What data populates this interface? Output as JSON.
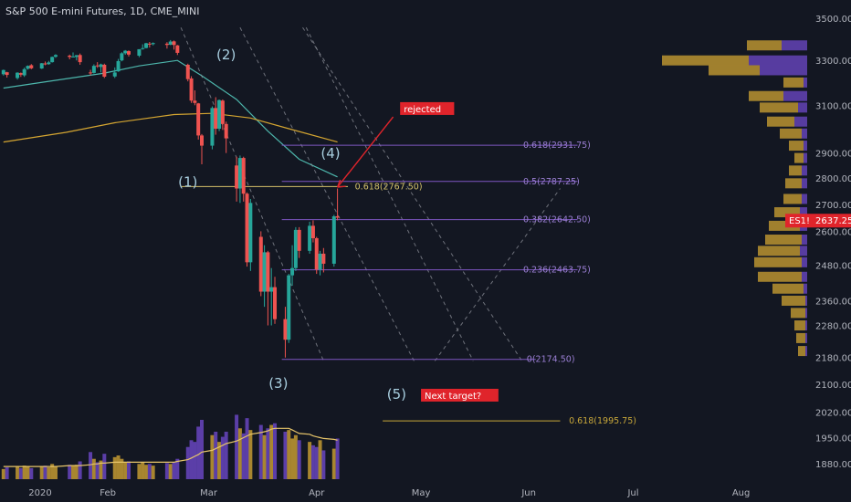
{
  "header": {
    "title": "S&P 500 E-mini Futures, 1D, CME_MINI"
  },
  "colors": {
    "background": "#131722",
    "up": "#26a69a",
    "down": "#ef5350",
    "text": "#b2b5be",
    "fib": "#7e57c2",
    "ma_short": "#4db6ac",
    "ma_long": "#d4a531",
    "vol_gold": "#a8862f",
    "vol_purple": "#5b3ea8",
    "price_tag": "#e0242b",
    "annotation_red": "#e0242b"
  },
  "chart_data": {
    "type": "candlestick",
    "symbol_tag": "ES1!",
    "last_price": "2637.25",
    "y_axis": {
      "ticks": [
        "3500.00",
        "3300.00",
        "3100.00",
        "2900.00",
        "2800.00",
        "2700.00",
        "2600.00",
        "2480.00",
        "2360.00",
        "2280.00",
        "2180.00",
        "2100.00",
        "2020.00",
        "1950.00",
        "1880.00"
      ],
      "scale": "log",
      "range": [
        1830,
        3580
      ]
    },
    "x_axis": {
      "ticks": [
        "2020",
        "Feb",
        "Mar",
        "Apr",
        "May",
        "Jun",
        "Jul",
        "Aug"
      ],
      "range": [
        "2020-01-01",
        "2020-08-20"
      ]
    },
    "candles": [
      {
        "d": "2020-01-02",
        "o": 3237,
        "h": 3258,
        "l": 3231,
        "c": 3256
      },
      {
        "d": "2020-01-03",
        "o": 3246,
        "h": 3248,
        "l": 3222,
        "c": 3234
      },
      {
        "d": "2020-01-06",
        "o": 3220,
        "h": 3246,
        "l": 3213,
        "c": 3244
      },
      {
        "d": "2020-01-07",
        "o": 3242,
        "h": 3245,
        "l": 3225,
        "c": 3235
      },
      {
        "d": "2020-01-08",
        "o": 3232,
        "h": 3267,
        "l": 3225,
        "c": 3260
      },
      {
        "d": "2020-01-09",
        "o": 3262,
        "h": 3277,
        "l": 3258,
        "c": 3275
      },
      {
        "d": "2020-01-10",
        "o": 3278,
        "h": 3283,
        "l": 3260,
        "c": 3264
      },
      {
        "d": "2020-01-13",
        "o": 3263,
        "h": 3288,
        "l": 3261,
        "c": 3287
      },
      {
        "d": "2020-01-14",
        "o": 3286,
        "h": 3295,
        "l": 3278,
        "c": 3282
      },
      {
        "d": "2020-01-15",
        "o": 3283,
        "h": 3298,
        "l": 3280,
        "c": 3291
      },
      {
        "d": "2020-01-16",
        "o": 3292,
        "h": 3318,
        "l": 3290,
        "c": 3316
      },
      {
        "d": "2020-01-17",
        "o": 3317,
        "h": 3329,
        "l": 3312,
        "c": 3325
      },
      {
        "d": "2020-01-21",
        "o": 3322,
        "h": 3327,
        "l": 3305,
        "c": 3316
      },
      {
        "d": "2020-01-22",
        "o": 3317,
        "h": 3337,
        "l": 3314,
        "c": 3318
      },
      {
        "d": "2020-01-23",
        "o": 3316,
        "h": 3325,
        "l": 3300,
        "c": 3324
      },
      {
        "d": "2020-01-24",
        "o": 3325,
        "h": 3332,
        "l": 3280,
        "c": 3292
      },
      {
        "d": "2020-01-27",
        "o": 3245,
        "h": 3257,
        "l": 3232,
        "c": 3241
      },
      {
        "d": "2020-01-28",
        "o": 3243,
        "h": 3282,
        "l": 3240,
        "c": 3275
      },
      {
        "d": "2020-01-29",
        "o": 3277,
        "h": 3292,
        "l": 3266,
        "c": 3273
      },
      {
        "d": "2020-01-30",
        "o": 3270,
        "h": 3285,
        "l": 3245,
        "c": 3282
      },
      {
        "d": "2020-01-31",
        "o": 3280,
        "h": 3285,
        "l": 3220,
        "c": 3226
      },
      {
        "d": "2020-02-03",
        "o": 3227,
        "h": 3268,
        "l": 3220,
        "c": 3245
      },
      {
        "d": "2020-02-04",
        "o": 3250,
        "h": 3307,
        "l": 3248,
        "c": 3297
      },
      {
        "d": "2020-02-05",
        "o": 3300,
        "h": 3338,
        "l": 3296,
        "c": 3333
      },
      {
        "d": "2020-02-06",
        "o": 3333,
        "h": 3348,
        "l": 3326,
        "c": 3345
      },
      {
        "d": "2020-02-07",
        "o": 3343,
        "h": 3347,
        "l": 3318,
        "c": 3327
      },
      {
        "d": "2020-02-10",
        "o": 3322,
        "h": 3352,
        "l": 3315,
        "c": 3352
      },
      {
        "d": "2020-02-11",
        "o": 3354,
        "h": 3375,
        "l": 3350,
        "c": 3357
      },
      {
        "d": "2020-02-12",
        "o": 3358,
        "h": 3382,
        "l": 3356,
        "c": 3380
      },
      {
        "d": "2020-02-13",
        "o": 3378,
        "h": 3386,
        "l": 3360,
        "c": 3376
      },
      {
        "d": "2020-02-14",
        "o": 3376,
        "h": 3384,
        "l": 3370,
        "c": 3381
      },
      {
        "d": "2020-02-18",
        "o": 3378,
        "h": 3385,
        "l": 3355,
        "c": 3372
      },
      {
        "d": "2020-02-19",
        "o": 3373,
        "h": 3395,
        "l": 3371,
        "c": 3388
      },
      {
        "d": "2020-02-20",
        "o": 3389,
        "h": 3393,
        "l": 3350,
        "c": 3372
      },
      {
        "d": "2020-02-21",
        "o": 3370,
        "h": 3372,
        "l": 3325,
        "c": 3335
      },
      {
        "d": "2020-02-24",
        "o": 3280,
        "h": 3285,
        "l": 3205,
        "c": 3215
      },
      {
        "d": "2020-02-25",
        "o": 3218,
        "h": 3228,
        "l": 3110,
        "c": 3120
      },
      {
        "d": "2020-02-26",
        "o": 3120,
        "h": 3165,
        "l": 3100,
        "c": 3110
      },
      {
        "d": "2020-02-27",
        "o": 3108,
        "h": 3110,
        "l": 2955,
        "c": 2972
      },
      {
        "d": "2020-02-28",
        "o": 2972,
        "h": 2978,
        "l": 2855,
        "c": 2930
      },
      {
        "d": "2020-03-02",
        "o": 2930,
        "h": 3095,
        "l": 2915,
        "c": 3088
      },
      {
        "d": "2020-03-03",
        "o": 3088,
        "h": 3135,
        "l": 2975,
        "c": 3000
      },
      {
        "d": "2020-03-04",
        "o": 3000,
        "h": 3125,
        "l": 2990,
        "c": 3122
      },
      {
        "d": "2020-03-05",
        "o": 3120,
        "h": 3125,
        "l": 2995,
        "c": 3020
      },
      {
        "d": "2020-03-06",
        "o": 3020,
        "h": 3030,
        "l": 2900,
        "c": 2960
      },
      {
        "d": "2020-03-09",
        "o": 2850,
        "h": 2885,
        "l": 2710,
        "c": 2760
      },
      {
        "d": "2020-03-10",
        "o": 2760,
        "h": 2890,
        "l": 2705,
        "c": 2880
      },
      {
        "d": "2020-03-11",
        "o": 2880,
        "h": 2885,
        "l": 2710,
        "c": 2740
      },
      {
        "d": "2020-03-12",
        "o": 2740,
        "h": 2745,
        "l": 2475,
        "c": 2490
      },
      {
        "d": "2020-03-13",
        "o": 2490,
        "h": 2720,
        "l": 2460,
        "c": 2705
      },
      {
        "d": "2020-03-16",
        "o": 2580,
        "h": 2600,
        "l": 2375,
        "c": 2390
      },
      {
        "d": "2020-03-17",
        "o": 2390,
        "h": 2550,
        "l": 2340,
        "c": 2525
      },
      {
        "d": "2020-03-18",
        "o": 2525,
        "h": 2530,
        "l": 2280,
        "c": 2390
      },
      {
        "d": "2020-03-19",
        "o": 2390,
        "h": 2470,
        "l": 2280,
        "c": 2405
      },
      {
        "d": "2020-03-20",
        "o": 2405,
        "h": 2440,
        "l": 2285,
        "c": 2300
      },
      {
        "d": "2020-03-23",
        "o": 2300,
        "h": 2340,
        "l": 2180,
        "c": 2235
      },
      {
        "d": "2020-03-24",
        "o": 2235,
        "h": 2450,
        "l": 2225,
        "c": 2445
      },
      {
        "d": "2020-03-25",
        "o": 2445,
        "h": 2550,
        "l": 2410,
        "c": 2470
      },
      {
        "d": "2020-03-26",
        "o": 2470,
        "h": 2615,
        "l": 2460,
        "c": 2605
      },
      {
        "d": "2020-03-27",
        "o": 2605,
        "h": 2615,
        "l": 2505,
        "c": 2530
      },
      {
        "d": "2020-03-30",
        "o": 2530,
        "h": 2635,
        "l": 2520,
        "c": 2620
      },
      {
        "d": "2020-03-31",
        "o": 2620,
        "h": 2640,
        "l": 2560,
        "c": 2575
      },
      {
        "d": "2020-04-01",
        "o": 2575,
        "h": 2580,
        "l": 2450,
        "c": 2465
      },
      {
        "d": "2020-04-02",
        "o": 2465,
        "h": 2530,
        "l": 2445,
        "c": 2520
      },
      {
        "d": "2020-04-03",
        "o": 2520,
        "h": 2540,
        "l": 2455,
        "c": 2485
      },
      {
        "d": "2020-04-06",
        "o": 2485,
        "h": 2660,
        "l": 2475,
        "c": 2655
      },
      {
        "d": "2020-04-07",
        "o": 2655,
        "h": 2760,
        "l": 2640,
        "c": 2650
      }
    ],
    "volume": {
      "ylim": [
        0,
        14
      ],
      "values": [
        1.2,
        1.4,
        1.5,
        1.3,
        1.6,
        1.5,
        1.3,
        1.5,
        1.6,
        1.4,
        1.8,
        1.5,
        1.7,
        1.6,
        1.7,
        2.1,
        3.2,
        2.4,
        2.0,
        2.2,
        3.0,
        2.6,
        2.8,
        2.4,
        2.0,
        2.1,
        1.8,
        2.0,
        1.7,
        1.8,
        1.6,
        1.9,
        1.8,
        2.0,
        2.4,
        3.8,
        4.6,
        4.4,
        6.2,
        7.0,
        5.2,
        5.6,
        4.4,
        5.0,
        5.6,
        7.6,
        6.0,
        5.4,
        7.2,
        5.8,
        6.4,
        5.2,
        6.0,
        6.4,
        6.6,
        5.6,
        5.8,
        4.8,
        5.2,
        4.6,
        4.4,
        4.0,
        3.8,
        4.6,
        3.4,
        3.6,
        4.8
      ],
      "ma": [
        1.5,
        1.5,
        1.5,
        1.5,
        1.5,
        1.5,
        1.5,
        1.5,
        1.5,
        1.5,
        1.5,
        1.5,
        1.6,
        1.6,
        1.6,
        1.6,
        1.7,
        1.8,
        1.8,
        1.9,
        1.9,
        2.0,
        2.0,
        2.0,
        2.0,
        2.0,
        2.0,
        2.0,
        2.0,
        2.0,
        2.0,
        2.0,
        2.0,
        2.0,
        2.1,
        2.3,
        2.5,
        2.7,
        2.9,
        3.2,
        3.4,
        3.6,
        3.8,
        4.0,
        4.2,
        4.5,
        4.7,
        4.9,
        5.1,
        5.3,
        5.5,
        5.6,
        5.7,
        5.9,
        6.0,
        6.0,
        6.0,
        5.8,
        5.6,
        5.4,
        5.3,
        5.1,
        5.0,
        4.9,
        4.8,
        4.7,
        4.6
      ]
    },
    "ma_short": [
      [
        "2020-01-02",
        3175
      ],
      [
        "2020-01-15",
        3205
      ],
      [
        "2020-01-31",
        3242
      ],
      [
        "2020-02-10",
        3275
      ],
      [
        "2020-02-21",
        3300
      ],
      [
        "2020-02-28",
        3230
      ],
      [
        "2020-03-09",
        3125
      ],
      [
        "2020-03-18",
        2990
      ],
      [
        "2020-03-27",
        2875
      ],
      [
        "2020-04-07",
        2805
      ]
    ],
    "ma_long": [
      [
        "2020-01-02",
        2945
      ],
      [
        "2020-01-20",
        2985
      ],
      [
        "2020-02-03",
        3025
      ],
      [
        "2020-02-20",
        3060
      ],
      [
        "2020-03-02",
        3065
      ],
      [
        "2020-03-13",
        3045
      ],
      [
        "2020-03-24",
        3000
      ],
      [
        "2020-04-07",
        2945
      ]
    ],
    "fib_levels": [
      {
        "label": "0.618(2931.75)",
        "price": 2931.75,
        "x_start": "2020-03-22",
        "x_end": "2020-06-15",
        "label_x": "2020-06-02"
      },
      {
        "label": "0.5(2787.25)",
        "price": 2787.25,
        "x_start": "2020-03-22",
        "x_end": "2020-06-15",
        "label_x": "2020-06-02"
      },
      {
        "label": "0.382(2642.50)",
        "price": 2642.5,
        "x_start": "2020-03-22",
        "x_end": "2020-06-15",
        "label_x": "2020-06-02"
      },
      {
        "label": "0.236(2463.75)",
        "price": 2463.75,
        "x_start": "2020-03-22",
        "x_end": "2020-06-15",
        "label_x": "2020-06-02"
      },
      {
        "label": "0(2174.50)",
        "price": 2174.5,
        "x_start": "2020-03-22",
        "x_end": "2020-06-03",
        "label_x": "2020-06-03"
      }
    ],
    "level_0618_wave1": {
      "label": "0.618(2767.50)",
      "price": 2767.5,
      "x_start": "2020-02-22",
      "x_end": "2020-04-10",
      "label_x": "2020-04-12"
    },
    "level_target": {
      "label": "0.618(1995.75)",
      "price": 1995.75,
      "x_start": "2020-04-20",
      "x_end": "2020-06-10",
      "label_x": "2020-06-12"
    },
    "wave_labels": [
      {
        "text": "(1)",
        "d": "2020-02-24",
        "p": 2767
      },
      {
        "text": "(2)",
        "d": "2020-03-06",
        "p": 3305
      },
      {
        "text": "(3)",
        "d": "2020-03-21",
        "p": 2090
      },
      {
        "text": "(4)",
        "d": "2020-04-05",
        "p": 2880
      },
      {
        "text": "(5)",
        "d": "2020-04-24",
        "p": 2058
      }
    ],
    "annotations": [
      {
        "text": "rejected",
        "d": "2020-04-25",
        "p": 3070
      },
      {
        "text": "Next target?",
        "d": "2020-05-01",
        "p": 2058
      }
    ],
    "arrow": {
      "from": [
        "2020-04-07",
        2765
      ],
      "to": [
        "2020-04-23",
        3050
      ]
    },
    "channels": [
      [
        [
          "2020-02-22",
          3455
        ],
        [
          "2020-04-03",
          2170
        ]
      ],
      [
        [
          "2020-03-10",
          3455
        ],
        [
          "2020-04-29",
          2170
        ]
      ],
      [
        [
          "2020-03-29",
          3455
        ],
        [
          "2020-05-16",
          2170
        ]
      ],
      [
        [
          "2020-03-28",
          3455
        ],
        [
          "2020-05-30",
          2170
        ]
      ]
    ],
    "projection": [
      [
        "2020-05-05",
        2170
      ],
      [
        "2020-06-10",
        2760
      ]
    ],
    "volume_profile": [
      {
        "p": 3370,
        "a": 38,
        "b": 28
      },
      {
        "p": 3300,
        "a": 95,
        "b": 64
      },
      {
        "p": 3255,
        "a": 56,
        "b": 52
      },
      {
        "p": 3200,
        "a": 22,
        "b": 4
      },
      {
        "p": 3140,
        "a": 38,
        "b": 26
      },
      {
        "p": 3090,
        "a": 42,
        "b": 10
      },
      {
        "p": 3030,
        "a": 30,
        "b": 14
      },
      {
        "p": 2980,
        "a": 24,
        "b": 6
      },
      {
        "p": 2930,
        "a": 16,
        "b": 4
      },
      {
        "p": 2880,
        "a": 10,
        "b": 4
      },
      {
        "p": 2830,
        "a": 14,
        "b": 6
      },
      {
        "p": 2780,
        "a": 18,
        "b": 6
      },
      {
        "p": 2720,
        "a": 20,
        "b": 6
      },
      {
        "p": 2670,
        "a": 28,
        "b": 8
      },
      {
        "p": 2620,
        "a": 34,
        "b": 8
      },
      {
        "p": 2570,
        "a": 40,
        "b": 6
      },
      {
        "p": 2530,
        "a": 46,
        "b": 8
      },
      {
        "p": 2490,
        "a": 52,
        "b": 6
      },
      {
        "p": 2440,
        "a": 48,
        "b": 6
      },
      {
        "p": 2400,
        "a": 34,
        "b": 4
      },
      {
        "p": 2360,
        "a": 26,
        "b": 2
      },
      {
        "p": 2320,
        "a": 16,
        "b": 2
      },
      {
        "p": 2280,
        "a": 12,
        "b": 2
      },
      {
        "p": 2240,
        "a": 10,
        "b": 2
      },
      {
        "p": 2200,
        "a": 8,
        "b": 2
      }
    ]
  }
}
